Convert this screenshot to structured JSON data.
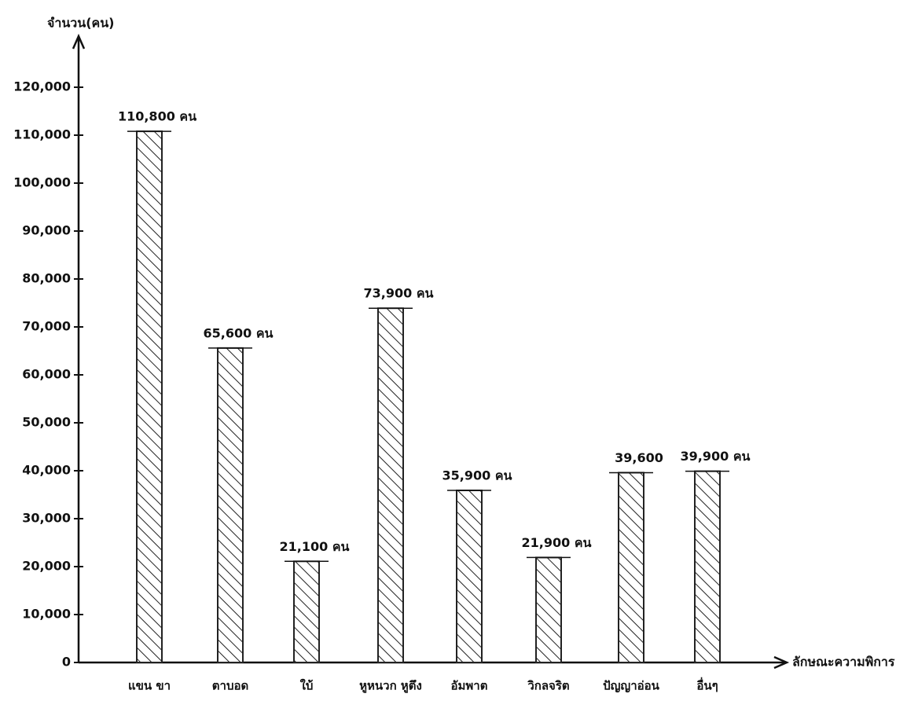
{
  "chart_data": {
    "type": "bar",
    "y_label": "จำนวน(คน)",
    "x_label": "ลักษณะความพิการ",
    "categories": [
      "แขน ขา",
      "ตาบอด",
      "ใบ้",
      "หูหนวก หูตึง",
      "อัมพาต",
      "วิกลจริต",
      "ปัญญาอ่อน",
      "อื่นๆ"
    ],
    "values": [
      110800,
      65600,
      21100,
      73900,
      35900,
      21900,
      39600,
      39900
    ],
    "value_labels": [
      "110,800 คน",
      "65,600 คน",
      "21,100 คน",
      "73,900 คน",
      "35,900 คน",
      "21,900 คน",
      "39,600",
      "39,900 คน"
    ],
    "color": "#222222",
    "ylim": [
      0,
      130000
    ],
    "yticks": [
      0,
      {
        "value": 10000,
        "label": "10,000"
      },
      {
        "value": 20000,
        "label": "20,000"
      },
      {
        "value": 30000,
        "label": "30,000"
      },
      {
        "value": 40000,
        "label": "40,000"
      },
      {
        "value": 50000,
        "label": "50,000"
      },
      {
        "value": 60000,
        "label": "60,000"
      },
      {
        "value": 70000,
        "label": "70,000"
      },
      {
        "value": 80000,
        "label": "80,000"
      },
      {
        "value": 90000,
        "label": "90,000"
      },
      {
        "value": 100000,
        "label": "100,000"
      },
      {
        "value": 110000,
        "label": "110,000"
      },
      {
        "value": 120000,
        "label": "120,000"
      }
    ]
  }
}
